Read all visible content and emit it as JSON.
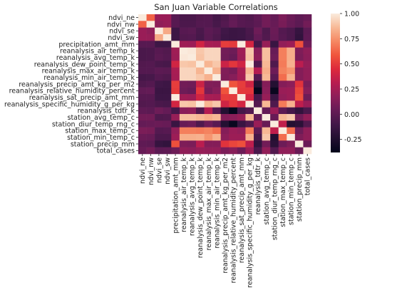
{
  "chart_data": {
    "type": "heatmap",
    "title": "San Juan Variable Correlations",
    "variables": [
      "ndvi_ne",
      "ndvi_nw",
      "ndvi_se",
      "ndvi_sw",
      "precipitation_amt_mm",
      "reanalysis_air_temp_k",
      "reanalysis_avg_temp_k",
      "reanalysis_dew_point_temp_k",
      "reanalysis_max_air_temp_k",
      "reanalysis_min_air_temp_k",
      "reanalysis_precip_amt_kg_per_m2",
      "reanalysis_relative_humidity_percent",
      "reanalysis_sat_precip_amt_mm",
      "reanalysis_specific_humidity_g_per_kg",
      "reanalysis_tdtr_k",
      "station_avg_temp_c",
      "station_diur_temp_rng_c",
      "station_max_temp_c",
      "station_min_temp_c",
      "station_precip_mm",
      "total_cases"
    ],
    "colorbar": {
      "min": -0.38,
      "max": 1.0,
      "ticks": [
        1.0,
        0.75,
        0.5,
        0.25,
        0.0,
        -0.25
      ],
      "tick_labels": [
        "1.00",
        "0.75",
        "0.50",
        "0.25",
        "0.00",
        "-0.25"
      ]
    },
    "matrix": [
      [
        1.0,
        0.62,
        0.21,
        0.21,
        -0.02,
        -0.07,
        -0.07,
        -0.04,
        -0.03,
        -0.09,
        -0.05,
        0.02,
        -0.02,
        -0.04,
        0.01,
        0.08,
        0.03,
        0.11,
        0.05,
        0.01,
        0.04
      ],
      [
        0.62,
        1.0,
        0.18,
        0.2,
        -0.02,
        -0.06,
        -0.06,
        -0.03,
        -0.03,
        -0.08,
        -0.03,
        0.03,
        -0.02,
        -0.03,
        0.0,
        0.08,
        0.04,
        0.1,
        0.04,
        0.0,
        0.08
      ],
      [
        0.21,
        0.18,
        1.0,
        0.82,
        -0.12,
        -0.02,
        -0.01,
        -0.07,
        0.0,
        -0.03,
        -0.11,
        -0.13,
        -0.12,
        -0.07,
        0.06,
        -0.05,
        0.05,
        -0.03,
        -0.06,
        -0.15,
        0.0
      ],
      [
        0.21,
        0.2,
        0.82,
        1.0,
        -0.12,
        -0.04,
        -0.03,
        -0.08,
        -0.01,
        -0.05,
        -0.12,
        -0.13,
        -0.12,
        -0.08,
        0.03,
        -0.04,
        0.04,
        -0.02,
        -0.06,
        -0.17,
        0.01
      ],
      [
        -0.02,
        -0.02,
        -0.12,
        -0.12,
        1.0,
        0.23,
        0.22,
        0.4,
        0.26,
        0.25,
        0.51,
        0.5,
        1.0,
        0.41,
        -0.09,
        0.2,
        -0.14,
        0.19,
        0.22,
        0.57,
        0.06
      ],
      [
        -0.07,
        -0.06,
        -0.02,
        -0.04,
        0.23,
        1.0,
        0.99,
        0.9,
        0.94,
        0.94,
        0.08,
        0.06,
        0.23,
        0.9,
        0.16,
        0.88,
        0.04,
        0.7,
        0.83,
        0.12,
        0.18
      ],
      [
        -0.07,
        -0.06,
        -0.01,
        -0.03,
        0.22,
        0.99,
        1.0,
        0.89,
        0.94,
        0.94,
        0.07,
        0.04,
        0.22,
        0.89,
        0.18,
        0.88,
        0.06,
        0.7,
        0.83,
        0.11,
        0.17
      ],
      [
        -0.04,
        -0.03,
        -0.07,
        -0.08,
        0.4,
        0.9,
        0.89,
        1.0,
        0.85,
        0.9,
        0.38,
        0.49,
        0.4,
        1.0,
        -0.04,
        0.86,
        -0.05,
        0.69,
        0.84,
        0.32,
        0.2
      ],
      [
        -0.03,
        -0.03,
        0.0,
        -0.01,
        0.26,
        0.94,
        0.94,
        0.85,
        1.0,
        0.84,
        0.13,
        0.1,
        0.26,
        0.85,
        0.3,
        0.83,
        0.06,
        0.71,
        0.76,
        0.14,
        0.19
      ],
      [
        -0.09,
        -0.08,
        -0.03,
        -0.05,
        0.25,
        0.94,
        0.94,
        0.9,
        0.84,
        1.0,
        0.12,
        0.15,
        0.25,
        0.9,
        -0.02,
        0.86,
        -0.01,
        0.65,
        0.84,
        0.14,
        0.19
      ],
      [
        -0.05,
        -0.03,
        -0.11,
        -0.12,
        0.51,
        0.08,
        0.07,
        0.38,
        0.13,
        0.12,
        1.0,
        0.58,
        0.51,
        0.39,
        -0.23,
        0.14,
        -0.23,
        0.14,
        0.17,
        0.48,
        0.11
      ],
      [
        0.02,
        0.03,
        -0.13,
        -0.13,
        0.5,
        0.06,
        0.04,
        0.49,
        0.1,
        0.15,
        0.58,
        1.0,
        0.5,
        0.49,
        -0.37,
        0.16,
        -0.35,
        0.21,
        0.22,
        0.54,
        0.15
      ],
      [
        -0.02,
        -0.02,
        -0.12,
        -0.12,
        1.0,
        0.23,
        0.22,
        0.4,
        0.26,
        0.25,
        0.51,
        0.5,
        1.0,
        0.41,
        -0.09,
        0.2,
        -0.14,
        0.19,
        0.22,
        0.57,
        0.06
      ],
      [
        -0.04,
        -0.03,
        -0.07,
        -0.08,
        0.41,
        0.9,
        0.89,
        1.0,
        0.85,
        0.9,
        0.39,
        0.49,
        0.41,
        1.0,
        -0.03,
        0.86,
        -0.05,
        0.69,
        0.84,
        0.33,
        0.21
      ],
      [
        0.01,
        0.0,
        0.06,
        0.03,
        -0.09,
        0.16,
        0.18,
        -0.04,
        0.3,
        -0.02,
        -0.23,
        -0.37,
        -0.09,
        -0.03,
        1.0,
        0.03,
        0.21,
        0.0,
        -0.09,
        -0.17,
        -0.07
      ],
      [
        0.08,
        0.08,
        -0.05,
        -0.04,
        0.2,
        0.88,
        0.88,
        0.86,
        0.83,
        0.86,
        0.14,
        0.16,
        0.2,
        0.86,
        0.03,
        1.0,
        0.04,
        0.86,
        0.9,
        0.08,
        0.19
      ],
      [
        0.03,
        0.04,
        0.05,
        0.04,
        -0.14,
        0.04,
        0.06,
        -0.05,
        0.06,
        -0.01,
        -0.23,
        -0.35,
        -0.14,
        -0.05,
        0.21,
        0.04,
        1.0,
        0.34,
        -0.23,
        -0.2,
        -0.04
      ],
      [
        0.11,
        0.1,
        -0.03,
        -0.02,
        0.19,
        0.7,
        0.7,
        0.69,
        0.71,
        0.65,
        0.14,
        0.21,
        0.19,
        0.69,
        0.0,
        0.86,
        0.34,
        1.0,
        0.65,
        0.06,
        0.18
      ],
      [
        0.05,
        0.04,
        -0.06,
        -0.06,
        0.22,
        0.83,
        0.83,
        0.84,
        0.76,
        0.84,
        0.17,
        0.22,
        0.22,
        0.84,
        -0.09,
        0.9,
        -0.23,
        0.65,
        1.0,
        0.12,
        0.18
      ],
      [
        0.01,
        0.0,
        -0.15,
        -0.17,
        0.57,
        0.12,
        0.11,
        0.32,
        0.14,
        0.14,
        0.48,
        0.54,
        0.57,
        0.33,
        -0.17,
        0.08,
        -0.2,
        0.06,
        0.12,
        1.0,
        0.05
      ],
      [
        0.04,
        0.08,
        0.0,
        0.01,
        0.06,
        0.18,
        0.17,
        0.2,
        0.19,
        0.19,
        0.11,
        0.15,
        0.06,
        0.21,
        -0.07,
        0.19,
        -0.04,
        0.18,
        0.18,
        0.05,
        1.0
      ]
    ]
  }
}
